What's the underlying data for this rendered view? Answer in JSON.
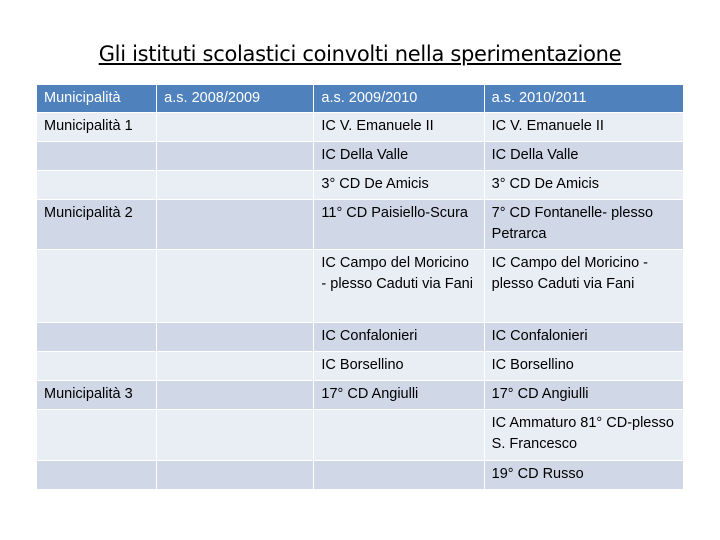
{
  "header": {
    "title": "Gli istituti scolastici coinvolti nella sperimentazione"
  },
  "table": {
    "columns": [
      "Municipalità",
      "a.s. 2008/2009",
      "a.s. 2009/2010",
      "a.s. 2010/2011"
    ],
    "rows": [
      [
        "Municipalità 1",
        null,
        "IC V. Emanuele II",
        "IC V. Emanuele II"
      ],
      [
        null,
        null,
        "IC Della Valle",
        "IC Della Valle"
      ],
      [
        null,
        null,
        "3° CD De Amicis",
        "3° CD De Amicis"
      ],
      [
        "Municipalità 2",
        null,
        "11° CD Paisiello-Scura",
        "7° CD Fontanelle- plesso Petrarca"
      ],
      [
        null,
        null,
        "IC Campo del Moricino - plesso Caduti via Fani",
        "IC Campo del Moricino - plesso Caduti via Fani"
      ],
      [
        null,
        null,
        "IC Confalonieri",
        "IC Confalonieri"
      ],
      [
        null,
        null,
        "IC Borsellino",
        "IC Borsellino"
      ],
      [
        "Municipalità 3",
        null,
        "17° CD Angiulli",
        "17° CD Angiulli"
      ],
      [
        null,
        null,
        null,
        "IC Ammaturo 81° CD-plesso S. Francesco"
      ],
      [
        null,
        null,
        null,
        "19° CD Russo"
      ]
    ]
  }
}
